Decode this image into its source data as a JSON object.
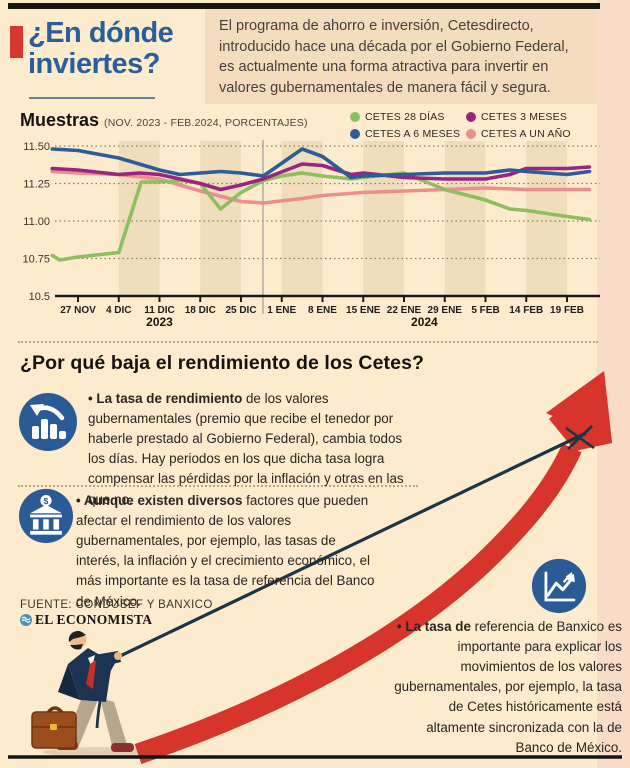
{
  "page": {
    "title_line1": "¿En dónde",
    "title_line2": "inviertes?",
    "intro": "El programa de ahorro e inversión, Cetesdirecto, introducido hace una década por el Gobierno Federal, es actualmente una forma atractiva para invertir en valores gubernamentales de manera fácil y segura.",
    "accent_color": "#d6382f",
    "title_color": "#2a5d9c",
    "background_color": "#fcebcd",
    "side_strip_color": "#f8dcc8"
  },
  "chart_data": {
    "type": "line",
    "title": "Muestras",
    "subtitle": "(NOV. 2023 - FEB.2024, PORCENTAJES)",
    "ylabel": "",
    "xlabel": "",
    "ylim": [
      10.5,
      11.5
    ],
    "grid": "dotted horizontal",
    "legend_position": "top-right",
    "x_tick_labels": [
      "27 NOV",
      "4 DIC",
      "11 DIC",
      "18 DIC",
      "25 DIC",
      "1 ENE",
      "8 ENE",
      "15 ENE",
      "22 ENE",
      "29 ENE",
      "5 FEB",
      "14 FEB",
      "19 FEB"
    ],
    "year_labels": [
      {
        "label": "2023",
        "tick": 2
      },
      {
        "label": "2024",
        "tick": 8.5
      }
    ],
    "y_ticks": [
      11.5,
      11.25,
      11.0,
      10.75,
      10.5
    ],
    "y_tick_labels": [
      "11.50",
      "11.25",
      "11.00",
      "10.75",
      "10.5"
    ],
    "divider_tick": 4.54,
    "shaded_weeks": [
      1,
      3,
      5,
      7,
      9,
      11
    ],
    "draw_order": [
      3,
      0,
      1,
      2
    ],
    "series": [
      {
        "name": "CETES 28 DÍAS",
        "color": "#8cc05e",
        "points": [
          [
            -0.63,
            10.77
          ],
          [
            -0.45,
            10.74
          ],
          [
            0,
            10.76
          ],
          [
            1,
            10.79
          ],
          [
            1.55,
            11.26
          ],
          [
            2,
            11.26
          ],
          [
            2.6,
            11.27
          ],
          [
            3,
            11.25
          ],
          [
            3.5,
            11.08
          ],
          [
            4,
            11.19
          ],
          [
            4.55,
            11.27
          ],
          [
            5,
            11.3
          ],
          [
            5.5,
            11.32
          ],
          [
            6,
            11.3
          ],
          [
            6.7,
            11.28
          ],
          [
            7,
            11.29
          ],
          [
            8,
            11.32
          ],
          [
            9,
            11.21
          ],
          [
            10,
            11.14
          ],
          [
            10.6,
            11.08
          ],
          [
            11,
            11.07
          ],
          [
            12,
            11.03
          ],
          [
            12.55,
            11.01
          ]
        ]
      },
      {
        "name": "CETES 3 MESES",
        "color": "#9a2482",
        "points": [
          [
            -0.63,
            11.35
          ],
          [
            0,
            11.34
          ],
          [
            1,
            11.31
          ],
          [
            1.5,
            11.32
          ],
          [
            2,
            11.31
          ],
          [
            3,
            11.25
          ],
          [
            3.5,
            11.21
          ],
          [
            4,
            11.24
          ],
          [
            4.55,
            11.28
          ],
          [
            5.5,
            11.38
          ],
          [
            6,
            11.37
          ],
          [
            6.7,
            11.31
          ],
          [
            7,
            11.32
          ],
          [
            8,
            11.29
          ],
          [
            9,
            11.28
          ],
          [
            10,
            11.28
          ],
          [
            10.6,
            11.31
          ],
          [
            11,
            11.35
          ],
          [
            12,
            11.35
          ],
          [
            12.55,
            11.36
          ]
        ]
      },
      {
        "name": "CETES A 6 MESES",
        "color": "#2c5c99",
        "points": [
          [
            -0.63,
            11.48
          ],
          [
            0,
            11.47
          ],
          [
            1,
            11.42
          ],
          [
            2,
            11.34
          ],
          [
            2.5,
            11.31
          ],
          [
            3,
            11.32
          ],
          [
            3.5,
            11.33
          ],
          [
            4,
            11.32
          ],
          [
            4.55,
            11.3
          ],
          [
            5.5,
            11.48
          ],
          [
            6,
            11.43
          ],
          [
            6.7,
            11.29
          ],
          [
            7,
            11.3
          ],
          [
            8,
            11.31
          ],
          [
            9,
            11.32
          ],
          [
            10,
            11.32
          ],
          [
            10.6,
            11.34
          ],
          [
            11,
            11.33
          ],
          [
            12,
            11.31
          ],
          [
            12.55,
            11.33
          ]
        ]
      },
      {
        "name": "CETES A UN AÑO",
        "color": "#ec8f8c",
        "points": [
          [
            -0.63,
            11.33
          ],
          [
            0,
            11.32
          ],
          [
            1,
            11.31
          ],
          [
            2,
            11.28
          ],
          [
            3,
            11.2
          ],
          [
            4,
            11.13
          ],
          [
            4.55,
            11.12
          ],
          [
            5.5,
            11.15
          ],
          [
            6,
            11.17
          ],
          [
            7,
            11.19
          ],
          [
            8,
            11.2
          ],
          [
            9,
            11.21
          ],
          [
            10,
            11.22
          ],
          [
            11,
            11.21
          ],
          [
            12,
            11.21
          ],
          [
            12.55,
            11.21
          ]
        ]
      }
    ]
  },
  "why_section": {
    "heading": "¿Por qué baja el rendimiento de los Cetes?",
    "bullets": [
      {
        "icon": "declining-bars-icon",
        "lead": "• La tasa de rendimiento",
        "rest": " de los valores gubernamentales (premio que recibe el tenedor por haberle prestado al Gobierno Federal), cambia todos los días. Hay periodos en los que dicha tasa logra compensar las pérdidas por la inflación y otras en las que no."
      },
      {
        "icon": "bank-icon",
        "lead": "• Aunque existen diversos",
        "rest": " factores que pueden afectar el rendimiento de los valores gubernamentales, por ejemplo, las tasas de interés, la inflación y el crecimiento económico, el más importante es la tasa de referencia del Banco de México."
      },
      {
        "icon": "uptrend-chart-icon",
        "lead": "• La tasa de",
        "rest": " referencia de Banxico es importante para explicar los movimientos de los valores gubernamentales, por ejemplo, la tasa de Cetes históricamente está altamente sincronizada con la de Banco de México."
      }
    ],
    "source": "FUENTE: CONDUSEF Y BANXICO",
    "brand": "EL ECONOMISTA"
  }
}
